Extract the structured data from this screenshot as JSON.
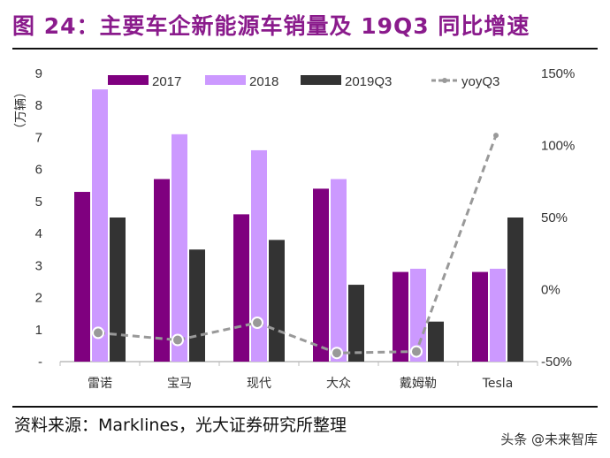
{
  "title": "图 24：主要车企新能源车销量及 19Q3 同比增速",
  "source": "资料来源：Marklines，光大证券研究所整理",
  "watermark": "头条 @未来智库",
  "chart_data": {
    "type": "bar",
    "ylabel": "（万辆）",
    "categories": [
      "雷诺",
      "宝马",
      "现代",
      "大众",
      "戴姆勒",
      "Tesla"
    ],
    "series": [
      {
        "name": "2017",
        "type": "bar",
        "axis": "left",
        "color": "#7f007f",
        "values": [
          5.3,
          5.7,
          4.6,
          5.4,
          2.8,
          2.8
        ]
      },
      {
        "name": "2018",
        "type": "bar",
        "axis": "left",
        "color": "#cc99ff",
        "values": [
          8.5,
          7.1,
          6.6,
          5.7,
          2.9,
          2.9
        ]
      },
      {
        "name": "2019Q3",
        "type": "bar",
        "axis": "left",
        "color": "#333333",
        "values": [
          4.5,
          3.5,
          3.8,
          2.4,
          1.25,
          4.5
        ]
      },
      {
        "name": "yoyQ3",
        "type": "line",
        "style": "dashed",
        "axis": "right",
        "color": "#999999",
        "values": [
          -30,
          -35,
          -23,
          -44,
          -43,
          107
        ]
      }
    ],
    "ylim": [
      0,
      9
    ],
    "yticks": [
      "-",
      "1",
      "2",
      "3",
      "4",
      "5",
      "6",
      "7",
      "8",
      "9"
    ],
    "y2lim": [
      -50,
      150
    ],
    "y2ticks": [
      "-50%",
      "0%",
      "50%",
      "100%",
      "150%"
    ],
    "legend": "top",
    "grid": false
  }
}
